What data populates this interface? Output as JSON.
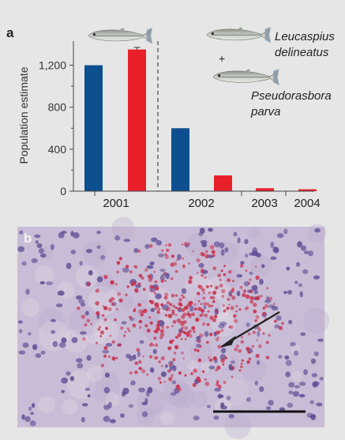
{
  "colors": {
    "background": "#e6e6e6",
    "leucaspius": "#0d4f8f",
    "pseudorasbora": "#e8202a",
    "axis": "#444444",
    "micrograph_base": "#cfc3da",
    "nuclei": "#5e4e95",
    "red_cells": "#c8324c",
    "arrow": "#222222",
    "scale_bar": "#111111"
  },
  "panel_a": {
    "label": "a",
    "species_1": "Leucaspius",
    "species_1b": "delineatus",
    "species_2": "Pseudorasbora",
    "species_2b": "parva",
    "plus": "+"
  },
  "panel_b": {
    "label": "b"
  },
  "chart_data": {
    "type": "bar",
    "ylabel": "Population estimate",
    "xlabel": "",
    "ylim": [
      0,
      1400
    ],
    "yticks": [
      0,
      400,
      800,
      1200
    ],
    "ytick_labels": [
      "0",
      "400",
      "800",
      "1,200"
    ],
    "categories": [
      "2001",
      "2002",
      "2003",
      "2004"
    ],
    "series": [
      {
        "values": [
          1200,
          600,
          null,
          null
        ],
        "color": "#0d4f8f"
      },
      {
        "values": [
          1350,
          150,
          28,
          18
        ],
        "color": "#e8202a"
      }
    ],
    "error_bar_2001_red": 20,
    "divider_after": "2001",
    "grid": false,
    "legend": "none"
  }
}
